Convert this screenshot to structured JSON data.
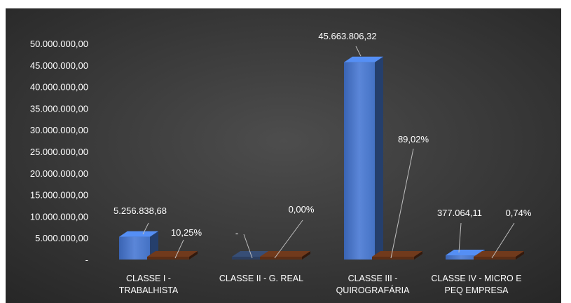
{
  "chart_data": {
    "type": "bar",
    "categories": [
      [
        "CLASSE I -",
        "TRABALHISTA"
      ],
      [
        "CLASSE II - G. REAL"
      ],
      [
        "CLASSE III -",
        "QUIROGRAFÁRIA"
      ],
      [
        "CLASSE IV - MICRO E",
        "PEQ EMPRESA"
      ]
    ],
    "series": [
      {
        "values": [
          5256838.68,
          0,
          45663806.32,
          377064.11
        ],
        "color": "#4472C4"
      },
      {
        "values": [
          10.25,
          0.0,
          89.02,
          0.74
        ],
        "color": "#C55A11"
      }
    ],
    "value_labels": [
      "5.256.838,68",
      "-",
      "45.663.806,32",
      "377.064,11"
    ],
    "percent_labels": [
      "10,25%",
      "0,00%",
      "89,02%",
      "0,74%"
    ],
    "y_ticks": [
      "-",
      "5.000.000,00",
      "10.000.000,00",
      "15.000.000,00",
      "20.000.000,00",
      "25.000.000,00",
      "30.000.000,00",
      "35.000.000,00",
      "40.000.000,00",
      "45.000.000,00",
      "50.000.000,00"
    ],
    "ylim": [
      0,
      50000000
    ],
    "ystep": 5000000,
    "background": "#3a3a3a",
    "text_color": "#ffffff"
  }
}
